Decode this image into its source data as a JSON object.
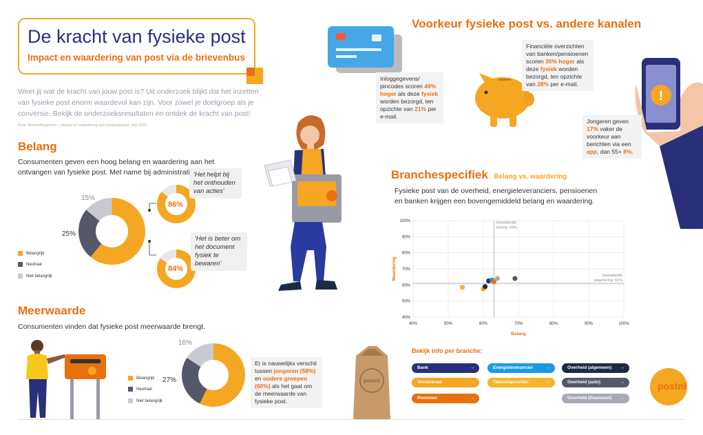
{
  "header": {
    "title": "De kracht van fysieke post",
    "subtitle": "Impact en waardering van post via de brievenbus"
  },
  "intro": {
    "text": "Weet jij wat de kracht van jouw post is? Uit onderzoek blijkt dat het inzetten van fysieke post enorm waardevol kan zijn. Voor zowel je doelgroep als je conversie. Bekijk de onderzoeksresultaten en ontdek de kracht van post!",
    "source": "Bron: MarketResponse – Impact en waardering van transactiepost, mei 2023"
  },
  "belang": {
    "heading": "Belang",
    "text": "Consumenten geven een hoog belang en waardering aan het ontvangen van fysieke post. Met name bij administratieve post.",
    "donut": {
      "main": "61%",
      "neutral": "25%",
      "notimportant": "15%",
      "values": [
        61,
        25,
        15
      ]
    },
    "small1": {
      "pct": "86%",
      "value": 86,
      "quote": "'Het helpt bij het onthouden van acties'"
    },
    "small2": {
      "pct": "84%",
      "value": 84,
      "quote": "'Het is beter om het document fysiek te bewaren'"
    },
    "legend": [
      "Belangrijk",
      "Neutraal",
      "Niet belangrijk"
    ]
  },
  "meerwaarde": {
    "heading": "Meerwaarde",
    "text": "Consumenten vinden dat fysieke post meerwaarde brengt.",
    "donut": {
      "main": "57%",
      "neutral": "27%",
      "notimportant": "16%",
      "values": [
        57,
        27,
        16
      ]
    },
    "legend": [
      "Belangrijk",
      "Neutraal",
      "Niet belangrijk"
    ],
    "info_a": "Er is nauwelijks verschil tussen ",
    "info_b": "jongeren (58%)",
    "info_c": " en ",
    "info_d": "oudere groepen (60%)",
    "info_e": " als het gaat om de meerwaarde van fysieke post."
  },
  "voorkeur": {
    "heading": "Voorkeur fysieke post vs. andere kanalen",
    "card": {
      "a": "Inloggegevens/ pincodes scoren ",
      "b": "49% hoger",
      "c": " als deze ",
      "d": "fysiek",
      "e": " worden bezorgd, ten opzichte van ",
      "f": "21%",
      "g": " per e-mail."
    },
    "bank": {
      "a": "Financiële overzichten van banken/pensioenen scoren ",
      "b": "35% hoger",
      "c": " als deze ",
      "d": "fysiek",
      "e": " worden bezorgd, ten opzichte van ",
      "f": "28%",
      "g": " per e-mail."
    },
    "app": {
      "a": "Jongeren geven ",
      "b": "17%",
      "c": " vaker de voorkeur aan berichten via een ",
      "d": "app",
      "e": ", dan 55+ ",
      "f": "8%",
      "g": "."
    }
  },
  "branche": {
    "heading": "Branchespecifiek",
    "subheading": "Belang vs. waardering",
    "text": "Fysieke post van de overheid, energieleveranciers, pensioenen en banken krijgen een bovengemiddeld belang en waardering.",
    "info_title": "Bekijk info per branche:",
    "buttons": [
      {
        "label": "Bank",
        "color": "#2a2f7a"
      },
      {
        "label": "Energieleverancier",
        "color": "#1a9be0"
      },
      {
        "label": "Overheid (algemeen)",
        "color": "#1c2b45"
      },
      {
        "label": "Verzekeraar",
        "color": "#f5a623"
      },
      {
        "label": "Telecomprovider",
        "color": "#f5b52a"
      },
      {
        "label": "Overheid (auto)",
        "color": "#55586a"
      },
      {
        "label": "Pensioen",
        "color": "#e8700f"
      },
      {
        "label": "Overheid (financieel)",
        "color": "#a8a8b4"
      }
    ],
    "arrow": "→"
  },
  "chart_data": {
    "type": "scatter",
    "xlabel": "Belang",
    "ylabel": "Waardering",
    "xlim": [
      40,
      100
    ],
    "ylim": [
      40,
      100
    ],
    "x_ticks": [
      "40%",
      "50%",
      "60%",
      "70%",
      "80%",
      "90%",
      "100%"
    ],
    "y_ticks": [
      "40%",
      "50%",
      "60%",
      "70%",
      "80%",
      "90%",
      "100%"
    ],
    "avg_x": {
      "value": 63,
      "label_line1": "Gemiddelde",
      "label_line2": "belang: 63%"
    },
    "avg_y": {
      "value": 61,
      "label_line1": "Gemiddelde",
      "label_line2": "waardering: 61%"
    },
    "points": [
      {
        "x": 54,
        "y": 58.5,
        "color": "#f5b52a"
      },
      {
        "x": 60,
        "y": 57.5,
        "color": "#f5a623"
      },
      {
        "x": 60.5,
        "y": 59,
        "color": "#1c2b45"
      },
      {
        "x": 61.5,
        "y": 62.5,
        "color": "#2a2f7a"
      },
      {
        "x": 62.5,
        "y": 63,
        "color": "#1a9be0"
      },
      {
        "x": 63,
        "y": 62,
        "color": "#e8700f"
      },
      {
        "x": 64,
        "y": 64,
        "color": "#a8a8b4"
      },
      {
        "x": 69,
        "y": 64,
        "color": "#55586a"
      }
    ],
    "grid": true
  },
  "colors": {
    "orange": "#f5a623",
    "dark_orange": "#e8700f",
    "navy": "#2a2f7a",
    "gray": "#55586a",
    "light_gray": "#c9c9d2"
  },
  "logo": {
    "text": "postnl"
  }
}
